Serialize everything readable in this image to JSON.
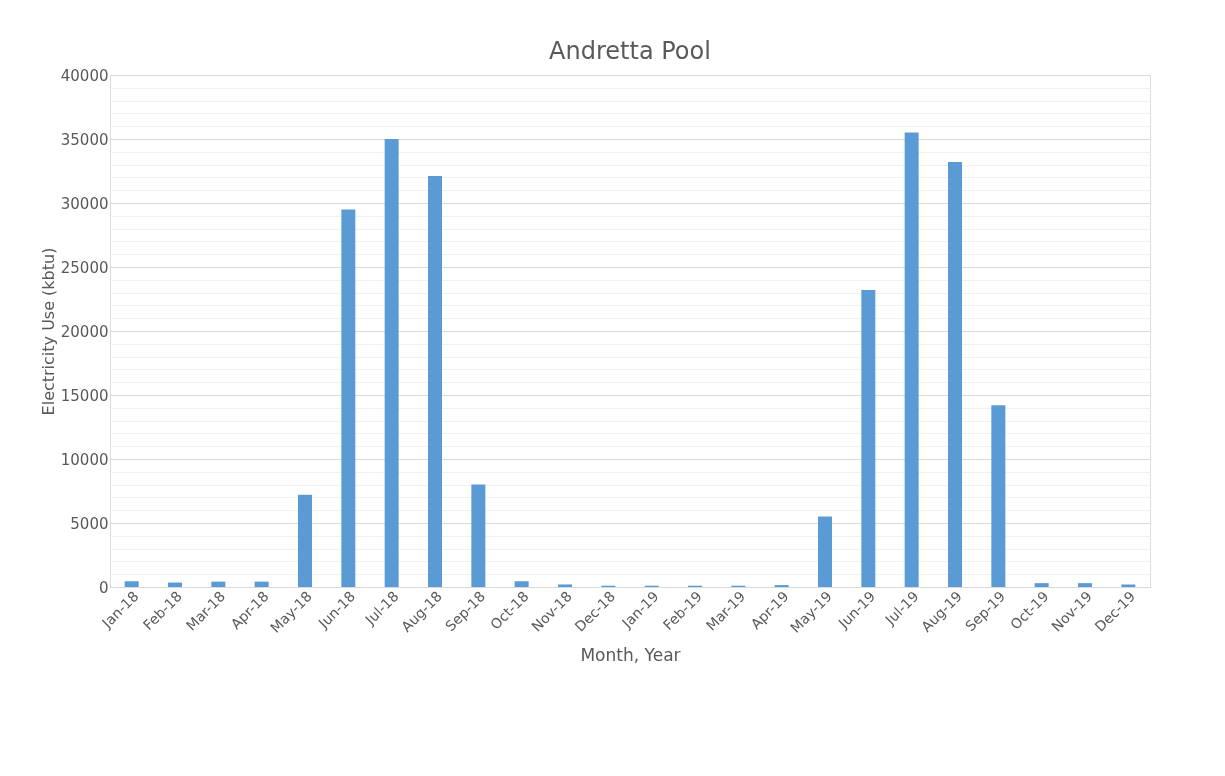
{
  "chart_data": {
    "type": "bar",
    "title": "Andretta Pool",
    "xlabel": "Month, Year",
    "ylabel": "Electricity Use (kbtu)",
    "categories": [
      "Jan-18",
      "Feb-18",
      "Mar-18",
      "Apr-18",
      "May-18",
      "Jun-18",
      "Jul-18",
      "Aug-18",
      "Sep-18",
      "Oct-18",
      "Nov-18",
      "Dec-18",
      "Jan-19",
      "Feb-19",
      "Mar-19",
      "Apr-19",
      "May-19",
      "Jun-19",
      "Jul-19",
      "Aug-19",
      "Sep-19",
      "Oct-19",
      "Nov-19",
      "Dec-19"
    ],
    "values": [
      450,
      350,
      420,
      420,
      7200,
      29500,
      35000,
      32100,
      8000,
      450,
      200,
      100,
      100,
      100,
      100,
      150,
      5500,
      23200,
      35500,
      33200,
      14200,
      300,
      300,
      200
    ],
    "color": "#5b9bd5",
    "ylim": [
      0,
      40000
    ],
    "yticks": [
      0,
      {
        "value": 1000,
        "label": null
      },
      {
        "value": 2000,
        "label": null
      },
      {
        "value": 3000,
        "label": null
      },
      {
        "value": 4000,
        "label": null
      },
      5000,
      {
        "value": 6000,
        "label": null
      },
      {
        "value": 7000,
        "label": null
      },
      {
        "value": 8000,
        "label": null
      },
      {
        "value": 9000,
        "label": null
      },
      10000,
      {
        "value": 11000,
        "label": null
      },
      {
        "value": 12000,
        "label": null
      },
      {
        "value": 13000,
        "label": null
      },
      {
        "value": 14000,
        "label": null
      },
      15000,
      {
        "value": 16000,
        "label": null
      },
      {
        "value": 17000,
        "label": null
      },
      {
        "value": 18000,
        "label": null
      },
      {
        "value": 19000,
        "label": null
      },
      20000,
      {
        "value": 21000,
        "label": null
      },
      {
        "value": 22000,
        "label": null
      },
      {
        "value": 23000,
        "label": null
      },
      {
        "value": 24000,
        "label": null
      },
      25000,
      {
        "value": 26000,
        "label": null
      },
      {
        "value": 27000,
        "label": null
      },
      {
        "value": 28000,
        "label": null
      },
      {
        "value": 29000,
        "label": null
      },
      30000,
      {
        "value": 31000,
        "label": null
      },
      {
        "value": 32000,
        "label": null
      },
      {
        "value": 33000,
        "label": null
      },
      {
        "value": 34000,
        "label": null
      },
      35000,
      {
        "value": 36000,
        "label": null
      },
      {
        "value": 37000,
        "label": null
      },
      {
        "value": 38000,
        "label": null
      },
      {
        "value": 39000,
        "label": null
      },
      40000
    ],
    "grid": "y"
  }
}
